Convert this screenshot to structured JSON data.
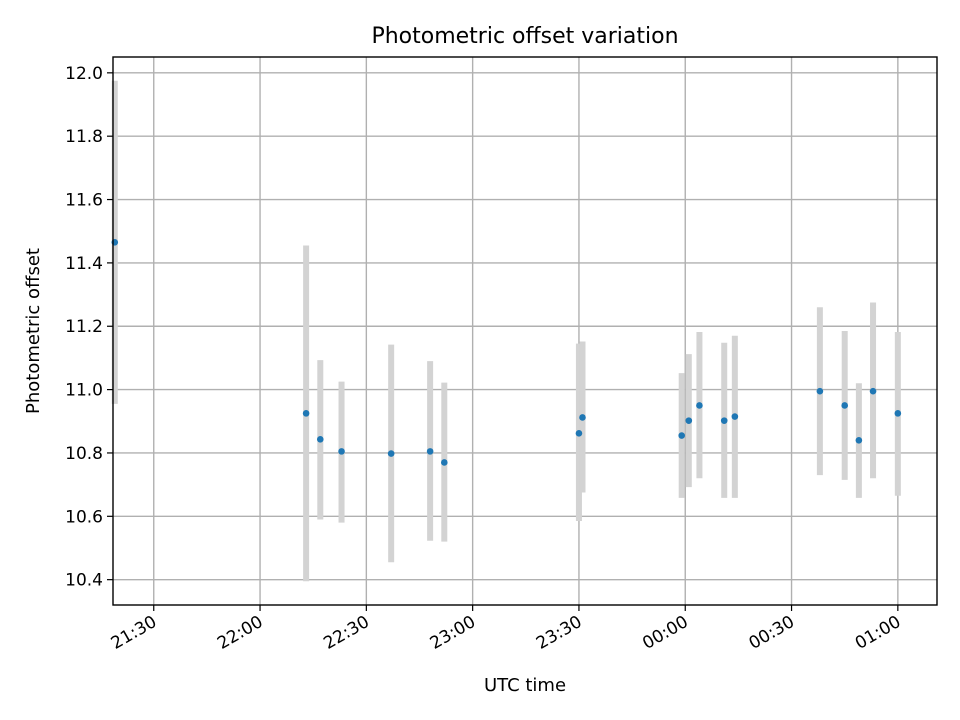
{
  "chart_data": {
    "type": "scatter",
    "title": "Photometric offset variation",
    "xlabel": "UTC time",
    "ylabel": "Photometric offset",
    "x_tick_labels": [
      "21:30",
      "22:00",
      "22:30",
      "23:00",
      "23:30",
      "00:00",
      "00:30",
      "01:00"
    ],
    "y_tick_labels": [
      "10.4",
      "10.6",
      "10.8",
      "11.0",
      "11.2",
      "11.4",
      "11.6",
      "11.8",
      "12.0"
    ],
    "xlim": [
      "21:19",
      "01:10"
    ],
    "ylim": [
      10.32,
      12.05
    ],
    "grid": true,
    "colors": {
      "points": "#1f77b4",
      "error_bars": "#d3d3d3"
    },
    "series": [
      {
        "points": [
          {
            "x": "21:19",
            "y": 11.465,
            "yerr_low": 10.955,
            "yerr_high": 11.975
          },
          {
            "x": "22:13",
            "y": 10.925,
            "yerr_low": 10.395,
            "yerr_high": 11.455
          },
          {
            "x": "22:17",
            "y": 10.843,
            "yerr_low": 10.59,
            "yerr_high": 11.093
          },
          {
            "x": "22:23",
            "y": 10.805,
            "yerr_low": 10.58,
            "yerr_high": 11.025
          },
          {
            "x": "22:37",
            "y": 10.798,
            "yerr_low": 10.455,
            "yerr_high": 11.142
          },
          {
            "x": "22:48",
            "y": 10.805,
            "yerr_low": 10.523,
            "yerr_high": 11.09
          },
          {
            "x": "22:52",
            "y": 10.77,
            "yerr_low": 10.52,
            "yerr_high": 11.022
          },
          {
            "x": "23:30",
            "y": 10.862,
            "yerr_low": 10.585,
            "yerr_high": 11.145
          },
          {
            "x": "23:31",
            "y": 10.912,
            "yerr_low": 10.675,
            "yerr_high": 11.152
          },
          {
            "x": "23:59",
            "y": 10.855,
            "yerr_low": 10.658,
            "yerr_high": 11.052
          },
          {
            "x": "00:01",
            "y": 10.902,
            "yerr_low": 10.692,
            "yerr_high": 11.112
          },
          {
            "x": "00:04",
            "y": 10.95,
            "yerr_low": 10.72,
            "yerr_high": 11.182
          },
          {
            "x": "00:11",
            "y": 10.902,
            "yerr_low": 10.658,
            "yerr_high": 11.148
          },
          {
            "x": "00:14",
            "y": 10.915,
            "yerr_low": 10.658,
            "yerr_high": 11.17
          },
          {
            "x": "00:38",
            "y": 10.995,
            "yerr_low": 10.73,
            "yerr_high": 11.26
          },
          {
            "x": "00:45",
            "y": 10.95,
            "yerr_low": 10.715,
            "yerr_high": 11.185
          },
          {
            "x": "00:49",
            "y": 10.84,
            "yerr_low": 10.658,
            "yerr_high": 11.02
          },
          {
            "x": "00:53",
            "y": 10.995,
            "yerr_low": 10.72,
            "yerr_high": 11.275
          },
          {
            "x": "01:00",
            "y": 10.925,
            "yerr_low": 10.665,
            "yerr_high": 11.182
          }
        ]
      }
    ]
  }
}
